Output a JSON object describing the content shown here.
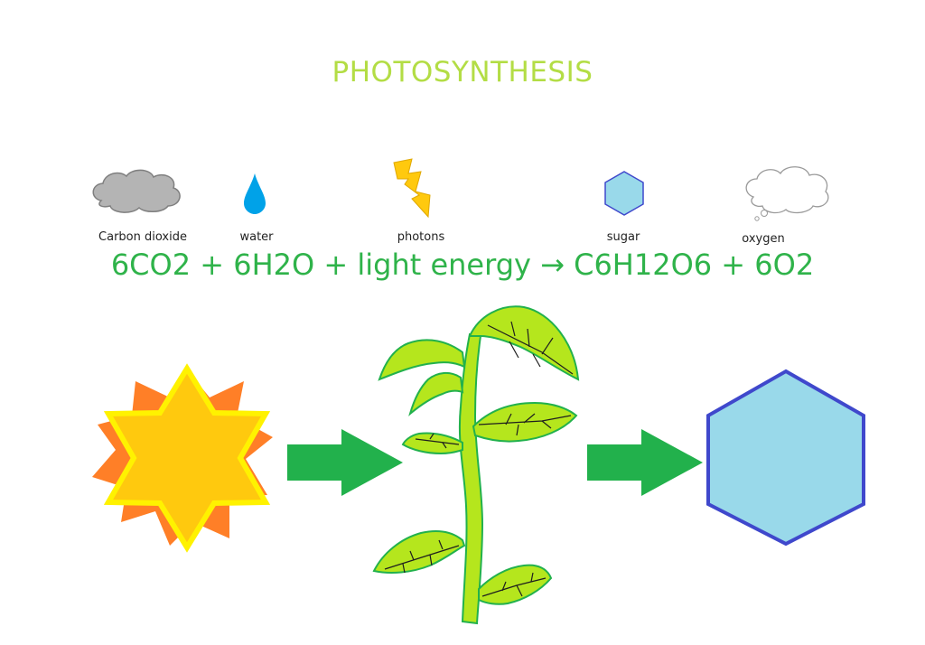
{
  "title": "PHOTOSYNTHESIS",
  "reactants": [
    {
      "label": "Carbon dioxide",
      "icon": "gray-cloud-icon"
    },
    {
      "label": "water",
      "icon": "water-drop-icon"
    },
    {
      "label": "photons",
      "icon": "lightning-bolt-icon"
    },
    {
      "label": "sugar",
      "icon": "hexagon-icon"
    },
    {
      "label": "oxygen",
      "icon": "white-cloud-icon"
    }
  ],
  "equation": "6CO2 + 6H2O + light energy → C6H12O6 + 6O2",
  "colors": {
    "title": "#b3dd45",
    "equation": "#2fb34a",
    "arrow": "#22b14c",
    "sun_rays": "#ff7f27",
    "sun_star": "#ffc90e",
    "sun_outline": "#fff200",
    "leaf": "#b5e61d",
    "hexagon_fill": "#99d9ea",
    "hexagon_stroke": "#3f48cc",
    "drop": "#00a2e8",
    "bolt": "#ffc90e"
  }
}
